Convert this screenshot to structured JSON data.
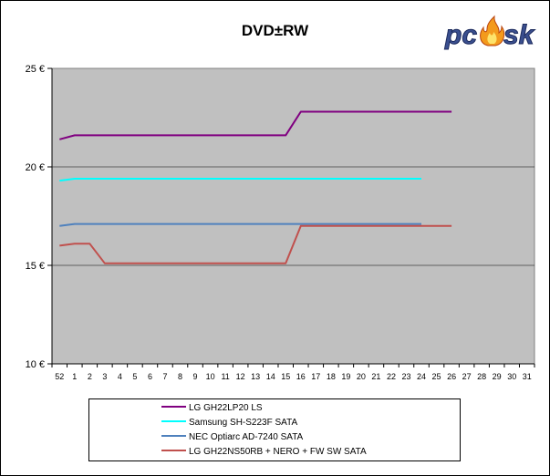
{
  "title": "DVD±RW",
  "logo": {
    "text_p": "pc",
    "text_s": "sk",
    "name": "pctuning-flame-logo"
  },
  "chart_data": {
    "type": "line",
    "title": "DVD±RW",
    "xlabel": "",
    "ylabel": "",
    "x_ticks": [
      "52",
      "1",
      "2",
      "3",
      "4",
      "5",
      "6",
      "7",
      "8",
      "9",
      "10",
      "11",
      "12",
      "13",
      "14",
      "15",
      "16",
      "17",
      "18",
      "19",
      "20",
      "21",
      "22",
      "23",
      "24",
      "25",
      "26",
      "27",
      "28",
      "29",
      "30",
      "31"
    ],
    "y_ticks": [
      "25 €",
      "20 €",
      "15 €",
      "10 €"
    ],
    "ylim": [
      10,
      25
    ],
    "grid": "horizontal",
    "legend_position": "bottom",
    "plot_background": "#c0c0c0",
    "series": [
      {
        "name": "LG GH22LP20 LS",
        "color": "#800080",
        "x": [
          0,
          1,
          2,
          3,
          4,
          5,
          6,
          7,
          8,
          9,
          10,
          11,
          12,
          13,
          14,
          15,
          16,
          17,
          18,
          19,
          20,
          21,
          22,
          23,
          24,
          25,
          26
        ],
        "values": [
          21.4,
          21.6,
          21.6,
          21.6,
          21.6,
          21.6,
          21.6,
          21.6,
          21.6,
          21.6,
          21.6,
          21.6,
          21.6,
          21.6,
          21.6,
          21.6,
          22.8,
          22.8,
          22.8,
          22.8,
          22.8,
          22.8,
          22.8,
          22.8,
          22.8,
          22.8,
          22.8
        ]
      },
      {
        "name": "Samsung SH-S223F SATA",
        "color": "#00ffff",
        "x": [
          0,
          1,
          2,
          3,
          4,
          5,
          6,
          7,
          8,
          9,
          10,
          11,
          12,
          13,
          14,
          15,
          16,
          17,
          18,
          19,
          20,
          21,
          22,
          23,
          24
        ],
        "values": [
          19.3,
          19.4,
          19.4,
          19.4,
          19.4,
          19.4,
          19.4,
          19.4,
          19.4,
          19.4,
          19.4,
          19.4,
          19.4,
          19.4,
          19.4,
          19.4,
          19.4,
          19.4,
          19.4,
          19.4,
          19.4,
          19.4,
          19.4,
          19.4,
          19.4
        ]
      },
      {
        "name": "NEC Optiarc AD-7240 SATA",
        "color": "#4f81bd",
        "x": [
          0,
          1,
          2,
          3,
          4,
          5,
          6,
          7,
          8,
          9,
          10,
          11,
          12,
          13,
          14,
          15,
          16,
          17,
          18,
          19,
          20,
          21,
          22,
          23,
          24
        ],
        "values": [
          17.0,
          17.1,
          17.1,
          17.1,
          17.1,
          17.1,
          17.1,
          17.1,
          17.1,
          17.1,
          17.1,
          17.1,
          17.1,
          17.1,
          17.1,
          17.1,
          17.1,
          17.1,
          17.1,
          17.1,
          17.1,
          17.1,
          17.1,
          17.1,
          17.1
        ]
      },
      {
        "name": "LG GH22NS50RB + NERO + FW SW SATA",
        "color": "#c0504d",
        "x": [
          0,
          1,
          2,
          3,
          4,
          5,
          6,
          7,
          8,
          9,
          10,
          11,
          12,
          13,
          14,
          15,
          16,
          17,
          18,
          19,
          20,
          21,
          22,
          23,
          24,
          25,
          26
        ],
        "values": [
          16.0,
          16.1,
          16.1,
          15.1,
          15.1,
          15.1,
          15.1,
          15.1,
          15.1,
          15.1,
          15.1,
          15.1,
          15.1,
          15.1,
          15.1,
          15.1,
          17.0,
          17.0,
          17.0,
          17.0,
          17.0,
          17.0,
          17.0,
          17.0,
          17.0,
          17.0,
          17.0
        ]
      }
    ]
  }
}
